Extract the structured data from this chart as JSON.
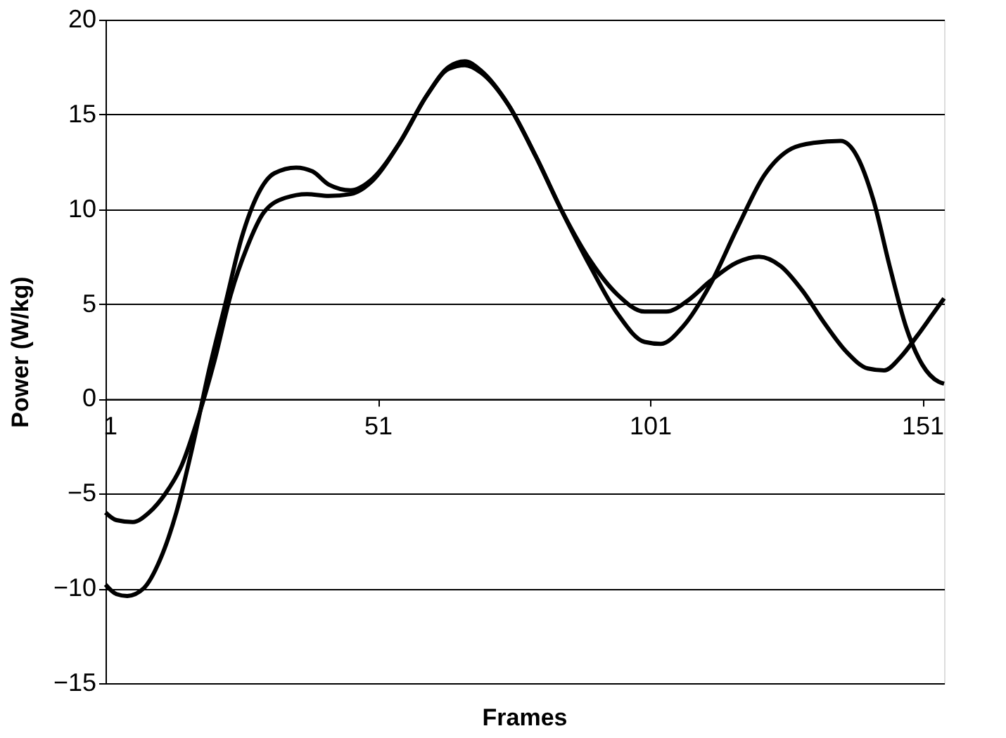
{
  "chart_data": {
    "type": "line",
    "xlabel": "Frames",
    "ylabel": "Power (W/kg)",
    "xlim": [
      1,
      155
    ],
    "xticks": [
      1,
      51,
      101,
      151
    ],
    "ylim": [
      -15,
      20
    ],
    "yticks": [
      -15,
      -10,
      -5,
      0,
      5,
      10,
      15,
      20
    ],
    "grid": "y",
    "legend": false,
    "marker": "none",
    "line_style": "solid",
    "series": [
      {
        "color": "#000000",
        "x": [
          1,
          3,
          5,
          8,
          11,
          14,
          17,
          20,
          23,
          26,
          29,
          32,
          36,
          39,
          42,
          46,
          50,
          55,
          60,
          64,
          67,
          70,
          75,
          80,
          85,
          90,
          95,
          100,
          103,
          107,
          112,
          117,
          122,
          127,
          131,
          136,
          139,
          142,
          145,
          148,
          151,
          154,
          155
        ],
        "values": [
          -9.8,
          -10.3,
          -10.4,
          -10,
          -8.5,
          -6,
          -2.5,
          1.5,
          5,
          8.5,
          10.8,
          11.9,
          12.2,
          12,
          11.3,
          11,
          11.6,
          13.5,
          16,
          17.5,
          17.8,
          17.3,
          15.5,
          12.8,
          9.8,
          7,
          4.5,
          3,
          2.9,
          3.8,
          6,
          9,
          11.8,
          13.2,
          13.5,
          13.6,
          12.8,
          10.5,
          7,
          3.8,
          1.8,
          0.9,
          0.8
        ]
      },
      {
        "color": "#000000",
        "x": [
          1,
          3,
          6,
          9,
          12,
          15,
          18,
          21,
          24,
          27,
          30,
          34,
          38,
          42,
          46,
          50,
          55,
          60,
          64,
          67,
          70,
          75,
          80,
          85,
          90,
          95,
          100,
          104,
          108,
          112,
          117,
          121,
          125,
          129,
          133,
          137,
          141,
          144,
          147,
          150,
          153,
          155
        ],
        "values": [
          -6,
          -6.4,
          -6.5,
          -6,
          -5,
          -3.5,
          -1,
          2,
          5.5,
          8,
          9.8,
          10.6,
          10.8,
          10.7,
          10.8,
          11.5,
          13.5,
          16,
          17.4,
          17.6,
          17.2,
          15.5,
          12.8,
          9.8,
          7.3,
          5.5,
          4.6,
          4.6,
          5.2,
          6.2,
          7.2,
          7.5,
          7,
          5.7,
          4,
          2.5,
          1.6,
          1.5,
          2.2,
          3.3,
          4.5,
          5.3
        ]
      }
    ]
  }
}
